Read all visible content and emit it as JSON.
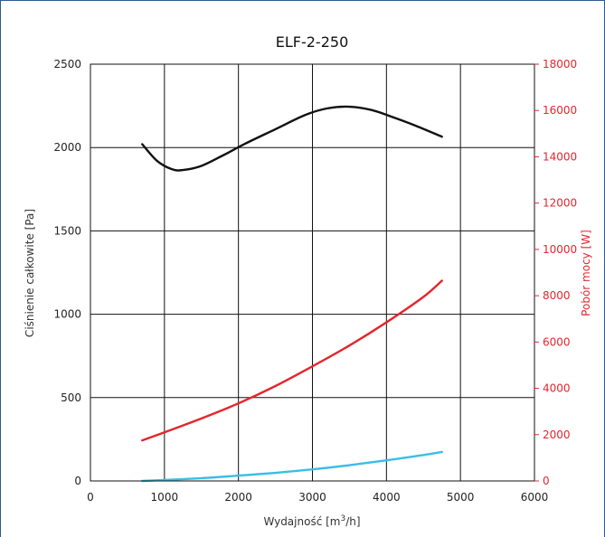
{
  "chart_data": {
    "type": "line",
    "title": "ELF-2-250",
    "xlabel": "Wydajność [m³/h]",
    "xlabel_base": "Wydajność [m",
    "xlabel_sup": "3",
    "xlabel_tail": "/h]",
    "ylabel": "Ciśnienie całkowite [Pa]",
    "y2label": "Pobór mocy [W]",
    "xlim": [
      0,
      6000
    ],
    "ylim": [
      0,
      2500
    ],
    "y2lim": [
      0,
      18000
    ],
    "grid": true,
    "x_ticks": [
      "0",
      "1000",
      "2000",
      "3000",
      "4000",
      "5000",
      "6000"
    ],
    "y_ticks": [
      "0",
      "500",
      "1000",
      "1500",
      "2000",
      "2500"
    ],
    "y2_ticks": [
      "0",
      "2000",
      "4000",
      "6000",
      "8000",
      "10000",
      "12000",
      "14000",
      "16000",
      "18000"
    ],
    "series": [
      {
        "axis": "left",
        "color": "#111111",
        "x": [
          700,
          900,
          1100,
          1250,
          1500,
          1800,
          2100,
          2500,
          2900,
          3200,
          3500,
          3800,
          4100,
          4400,
          4750
        ],
        "y": [
          2020,
          1920,
          1870,
          1865,
          1890,
          1955,
          2025,
          2110,
          2195,
          2235,
          2245,
          2225,
          2180,
          2130,
          2065
        ]
      },
      {
        "axis": "right",
        "color": "#e3262d",
        "x": [
          700,
          1000,
          1500,
          2000,
          2500,
          3000,
          3500,
          4000,
          4500,
          4750
        ],
        "y": [
          1750,
          2100,
          2700,
          3350,
          4100,
          4950,
          5850,
          6850,
          7950,
          8650
        ]
      },
      {
        "axis": "right",
        "color": "#3bbde8",
        "x": [
          700,
          1000,
          1500,
          2000,
          2500,
          3000,
          3500,
          4000,
          4500,
          4750
        ],
        "y": [
          0,
          40,
          120,
          230,
          350,
          500,
          680,
          890,
          1120,
          1250
        ]
      }
    ]
  }
}
